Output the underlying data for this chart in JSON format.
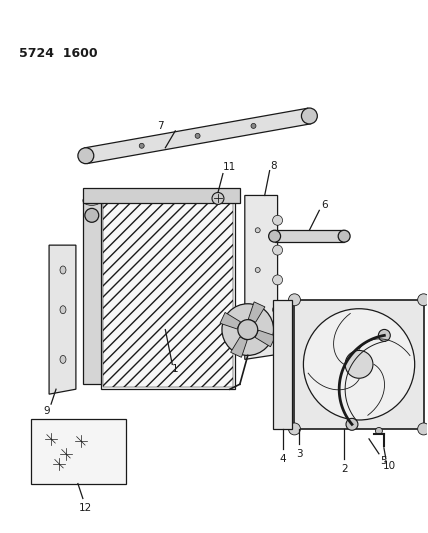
{
  "title": "5724 1600",
  "bg_color": "#ffffff",
  "line_color": "#1a1a1a",
  "fig_width": 4.28,
  "fig_height": 5.33,
  "dpi": 100
}
